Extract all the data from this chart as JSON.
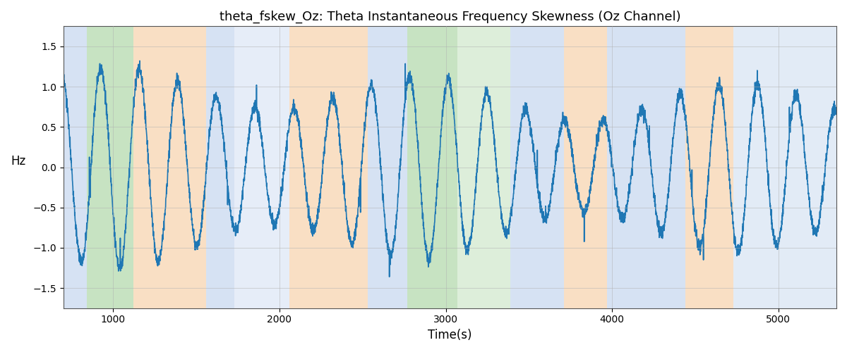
{
  "title": "theta_fskew_Oz: Theta Instantaneous Frequency Skewness (Oz Channel)",
  "xlabel": "Time(s)",
  "ylabel": "Hz",
  "ylim": [
    -1.75,
    1.75
  ],
  "xlim": [
    700,
    5350
  ],
  "yticks": [
    -1.5,
    -1.0,
    -0.5,
    0.0,
    0.5,
    1.0,
    1.5
  ],
  "xticks": [
    1000,
    2000,
    3000,
    4000,
    5000
  ],
  "line_color": "#1f77b4",
  "line_width": 1.2,
  "background_color": "#ffffff",
  "grid_color": "#b0b0b0",
  "bands": [
    {
      "xmin": 700,
      "xmax": 840,
      "color": "#aec6e8",
      "alpha": 0.5
    },
    {
      "xmin": 840,
      "xmax": 1120,
      "color": "#90c987",
      "alpha": 0.5
    },
    {
      "xmin": 1120,
      "xmax": 1560,
      "color": "#f5c08a",
      "alpha": 0.5
    },
    {
      "xmin": 1560,
      "xmax": 1730,
      "color": "#aec6e8",
      "alpha": 0.5
    },
    {
      "xmin": 1730,
      "xmax": 2060,
      "color": "#aec6e8",
      "alpha": 0.3
    },
    {
      "xmin": 2060,
      "xmax": 2530,
      "color": "#f5c08a",
      "alpha": 0.5
    },
    {
      "xmin": 2530,
      "xmax": 2770,
      "color": "#aec6e8",
      "alpha": 0.5
    },
    {
      "xmin": 2770,
      "xmax": 3070,
      "color": "#90c987",
      "alpha": 0.5
    },
    {
      "xmin": 3070,
      "xmax": 3390,
      "color": "#90c987",
      "alpha": 0.3
    },
    {
      "xmin": 3390,
      "xmax": 3710,
      "color": "#aec6e8",
      "alpha": 0.5
    },
    {
      "xmin": 3710,
      "xmax": 3970,
      "color": "#f5c08a",
      "alpha": 0.5
    },
    {
      "xmin": 3970,
      "xmax": 4440,
      "color": "#aec6e8",
      "alpha": 0.5
    },
    {
      "xmin": 4440,
      "xmax": 4730,
      "color": "#f5c08a",
      "alpha": 0.5
    },
    {
      "xmin": 4730,
      "xmax": 5350,
      "color": "#aec6e8",
      "alpha": 0.35
    }
  ],
  "seed": 0,
  "n_points": 5000,
  "t_start": 700,
  "t_end": 5350
}
